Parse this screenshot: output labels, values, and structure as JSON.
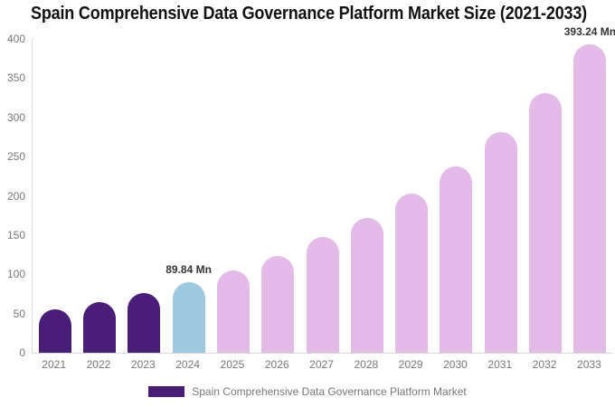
{
  "title": "Spain Comprehensive Data Governance Platform Market Size (2021-2033)",
  "legend": {
    "label": "Spain Comprehensive Data Governance Platform Market",
    "swatch_color": "#4A1D76"
  },
  "chart_data": {
    "type": "bar",
    "title": "Spain Comprehensive Data Governance Platform Market Size (2021-2033)",
    "unit": "Mn",
    "xlabel": "",
    "ylabel": "",
    "ylim": [
      0,
      400
    ],
    "yticks": [
      0,
      50,
      100,
      150,
      200,
      250,
      300,
      350,
      400
    ],
    "grid": false,
    "legend_position": "bottom",
    "categories": [
      "2021",
      "2022",
      "2023",
      "2024",
      "2025",
      "2026",
      "2027",
      "2028",
      "2029",
      "2030",
      "2031",
      "2032",
      "2033"
    ],
    "values": [
      55,
      65,
      76,
      89.84,
      105,
      123,
      147,
      172,
      203,
      238,
      281,
      331,
      393.24
    ],
    "bar_color_keys": [
      "historical",
      "historical",
      "historical",
      "current",
      "forecast",
      "forecast",
      "forecast",
      "forecast",
      "forecast",
      "forecast",
      "forecast",
      "forecast",
      "forecast"
    ],
    "colors": {
      "historical": "#4A1D76",
      "current": "#9DC8DD",
      "forecast": "#E3BAE8"
    },
    "annotations": [
      {
        "index": 3,
        "text": "89.84 Mn"
      },
      {
        "index": 12,
        "text": "393.24 Mn"
      }
    ]
  }
}
